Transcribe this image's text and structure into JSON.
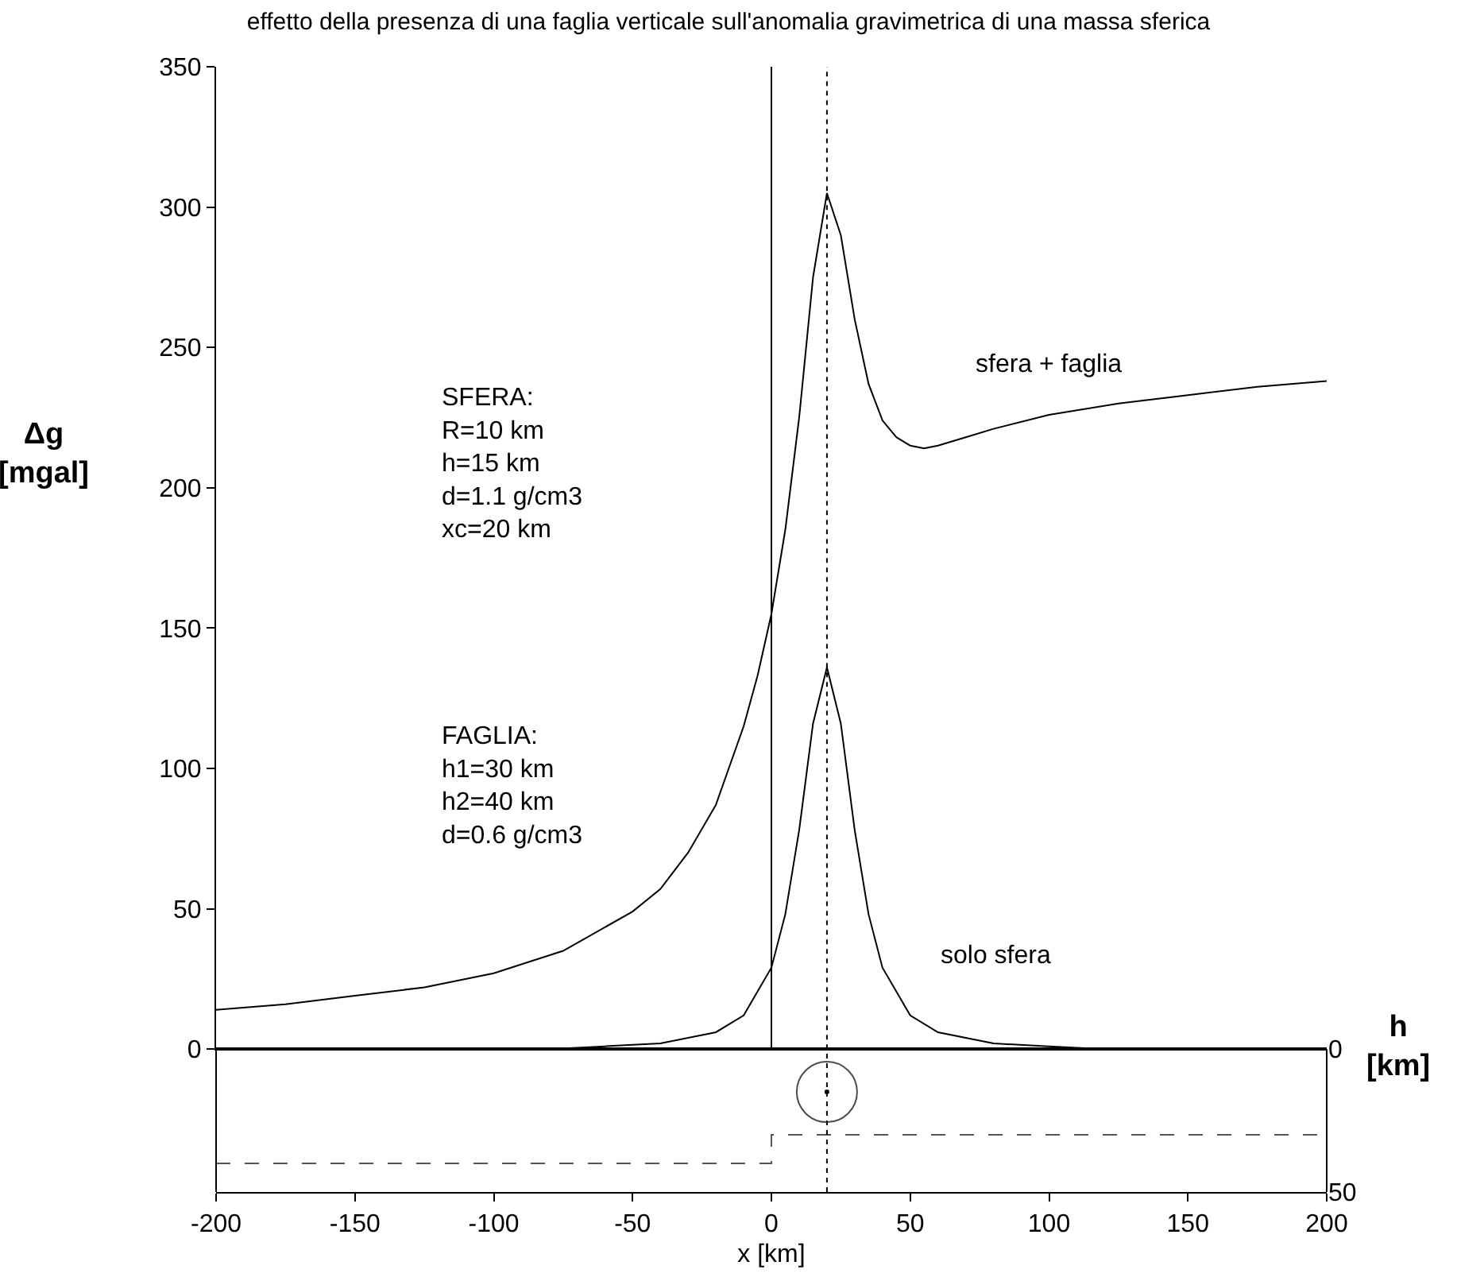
{
  "chart_data": [
    {
      "type": "line",
      "title": "effetto della presenza di una faglia verticale sull'anomalia gravimetrica di una massa sferica",
      "ylabel": "Δg [mgal]",
      "xlim": [
        -200,
        200
      ],
      "xticks": [
        -200,
        -150,
        -100,
        -50,
        0,
        50,
        100,
        150,
        200
      ],
      "ylim": [
        0,
        350
      ],
      "yticks": [
        0,
        50,
        100,
        150,
        200,
        250,
        300,
        350
      ],
      "tick_labels": "y",
      "grid": false,
      "legend": false,
      "marker": "none",
      "line_style": "solid",
      "series": [
        {
          "name": "sfera + faglia",
          "color": "#000000",
          "x": [
            -200,
            -175,
            -150,
            -125,
            -100,
            -75,
            -50,
            -40,
            -30,
            -20,
            -10,
            -5,
            0,
            5,
            10,
            15,
            20,
            25,
            30,
            35,
            40,
            45,
            50,
            55,
            60,
            70,
            80,
            100,
            125,
            150,
            175,
            200
          ],
          "values": [
            14,
            16,
            19,
            22,
            27,
            35,
            49,
            57,
            70,
            87,
            115,
            133,
            155,
            185,
            225,
            275,
            305,
            290,
            260,
            237,
            224,
            218,
            215,
            214,
            215,
            218,
            221,
            226,
            230,
            233,
            236,
            238
          ]
        },
        {
          "name": "solo sfera",
          "color": "#000000",
          "x": [
            -80,
            -60,
            -40,
            -20,
            -10,
            0,
            5,
            10,
            15,
            20,
            25,
            30,
            35,
            40,
            50,
            60,
            80,
            100,
            120
          ],
          "values": [
            0,
            1,
            2,
            6,
            12,
            29,
            48,
            78,
            116,
            136,
            116,
            78,
            48,
            29,
            12,
            6,
            2,
            1,
            0
          ]
        }
      ],
      "ref_lines": [
        {
          "axis": "x",
          "value": 0,
          "color": "#000000",
          "line_style": "solid"
        },
        {
          "axis": "x",
          "value": 20,
          "color": "#000000",
          "line_style": "dotted"
        }
      ],
      "annotations": [
        "SFERA:\nR=10 km\nh=15 km\nd=1.1 g/cm3\nxc=20 km",
        "FAGLIA:\nh1=30 km\nh2=40 km\nd=0.6 g/cm3"
      ]
    },
    {
      "type": "line",
      "xlabel": "x [km]",
      "ylabel": "h [km]",
      "xlim": [
        -200,
        200
      ],
      "xticks": [
        -200,
        -150,
        -100,
        -50,
        0,
        50,
        100,
        150,
        200
      ],
      "ylim": [
        50,
        0
      ],
      "yticks": [
        0,
        50
      ],
      "grid": false,
      "legend": false,
      "series": [
        {
          "type": "line",
          "color": "#555555",
          "line_style": "dashed",
          "marker": "none",
          "x": [
            -200,
            0,
            0,
            200
          ],
          "values": [
            40,
            40,
            30,
            30
          ]
        },
        {
          "type": "bubble",
          "color": "#000000",
          "marker": "circle",
          "x": [
            20
          ],
          "values": [
            15
          ],
          "sizes": [
            1
          ]
        }
      ],
      "ref_lines": [
        {
          "axis": "x",
          "value": 20,
          "color": "#000000",
          "line_style": "dotted"
        }
      ]
    }
  ]
}
